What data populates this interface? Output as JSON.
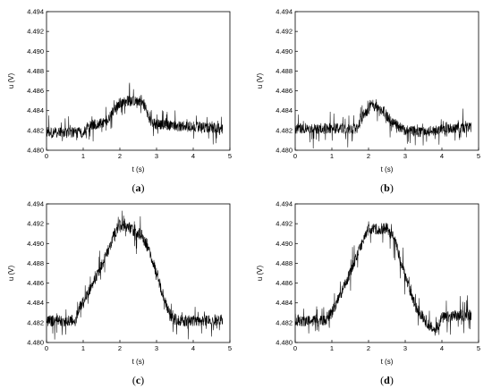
{
  "chart_data": [
    {
      "type": "line",
      "caption_open": "(",
      "caption_letter": "a",
      "caption_close": ")",
      "xlabel": "t (s)",
      "ylabel": "u (V)",
      "xlim": [
        0,
        5
      ],
      "ylim": [
        4.48,
        4.494
      ],
      "xticks": [
        "0",
        "1",
        "2",
        "3",
        "4",
        "5"
      ],
      "yticks": [
        "4.480",
        "4.482",
        "4.484",
        "4.486",
        "4.488",
        "4.490",
        "4.492",
        "4.494"
      ],
      "grid": false,
      "series": [
        {
          "x": [
            0,
            1.0,
            1.2,
            1.6,
            1.8,
            2.0,
            2.2,
            2.6,
            2.7,
            2.8,
            3.0,
            4.8
          ],
          "y": [
            4.4818,
            4.4818,
            4.4825,
            4.4828,
            4.4838,
            4.4848,
            4.485,
            4.485,
            4.4842,
            4.483,
            4.4826,
            4.4822
          ],
          "noise": 0.0012
        }
      ]
    },
    {
      "type": "line",
      "caption_open": "(",
      "caption_letter": "b",
      "caption_close": ")",
      "xlabel": "t (s)",
      "ylabel": "u (V)",
      "xlim": [
        0,
        5
      ],
      "ylim": [
        4.48,
        4.494
      ],
      "xticks": [
        "0",
        "1",
        "2",
        "3",
        "4",
        "5"
      ],
      "yticks": [
        "4.480",
        "4.482",
        "4.484",
        "4.486",
        "4.488",
        "4.490",
        "4.492",
        "4.494"
      ],
      "grid": false,
      "series": [
        {
          "x": [
            0,
            1.7,
            1.85,
            2.0,
            2.1,
            2.4,
            2.6,
            2.8,
            3.0,
            3.5,
            4.0,
            4.8
          ],
          "y": [
            4.4822,
            4.4822,
            4.4835,
            4.4842,
            4.4846,
            4.484,
            4.483,
            4.4825,
            4.482,
            4.4818,
            4.4821,
            4.4823
          ],
          "noise": 0.0012
        }
      ]
    },
    {
      "type": "line",
      "caption_open": "(",
      "caption_letter": "c",
      "caption_close": ")",
      "xlabel": "t (s)",
      "ylabel": "u (V)",
      "xlim": [
        0,
        5
      ],
      "ylim": [
        4.48,
        4.494
      ],
      "xticks": [
        "0",
        "1",
        "2",
        "3",
        "4",
        "5"
      ],
      "yticks": [
        "4.480",
        "4.482",
        "4.484",
        "4.486",
        "4.488",
        "4.490",
        "4.492",
        "4.494"
      ],
      "grid": false,
      "series": [
        {
          "x": [
            0,
            0.8,
            0.85,
            1.0,
            1.2,
            1.4,
            1.6,
            1.8,
            2.0,
            2.3,
            2.6,
            2.8,
            3.0,
            3.2,
            3.4,
            3.6,
            4.8
          ],
          "y": [
            4.4822,
            4.4822,
            4.4832,
            4.4842,
            4.4855,
            4.487,
            4.4885,
            4.4905,
            4.492,
            4.4915,
            4.4908,
            4.4893,
            4.487,
            4.4845,
            4.4825,
            4.4822,
            4.4823
          ],
          "noise": 0.0013
        }
      ]
    },
    {
      "type": "line",
      "caption_open": "(",
      "caption_letter": "d",
      "caption_close": ")",
      "xlabel": "t (s)",
      "ylabel": "u (V)",
      "xlim": [
        0,
        5
      ],
      "ylim": [
        4.48,
        4.494
      ],
      "xticks": [
        "0",
        "1",
        "2",
        "3",
        "4",
        "5"
      ],
      "yticks": [
        "4.480",
        "4.482",
        "4.484",
        "4.486",
        "4.488",
        "4.490",
        "4.492",
        "4.494"
      ],
      "grid": false,
      "series": [
        {
          "x": [
            0,
            0.8,
            1.0,
            1.2,
            1.4,
            1.6,
            1.8,
            2.0,
            2.5,
            2.7,
            2.9,
            3.1,
            3.3,
            3.5,
            3.7,
            3.8,
            4.0,
            4.8
          ],
          "y": [
            4.4822,
            4.4822,
            4.483,
            4.4845,
            4.4862,
            4.488,
            4.4898,
            4.4915,
            4.4915,
            4.4905,
            4.488,
            4.4855,
            4.4835,
            4.4825,
            4.4815,
            4.4812,
            4.4825,
            4.4828
          ],
          "noise": 0.0013
        }
      ]
    }
  ]
}
